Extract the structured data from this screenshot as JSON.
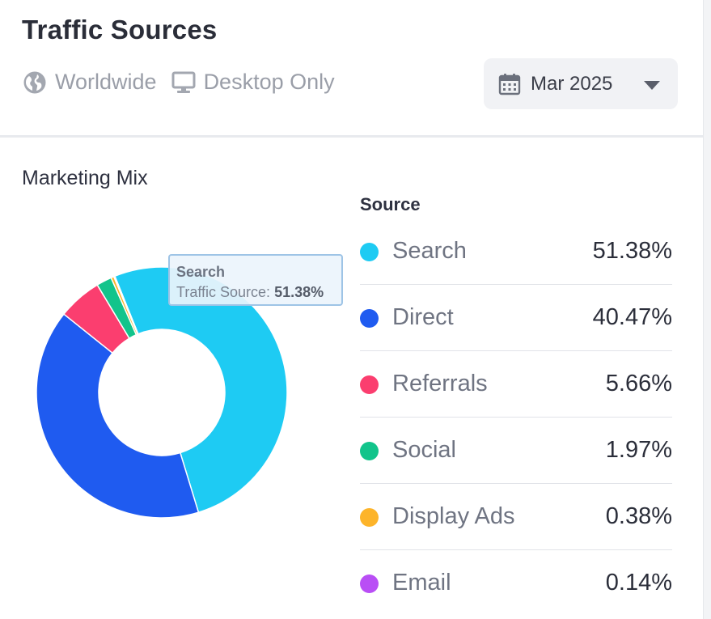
{
  "header": {
    "title": "Traffic Sources",
    "region": "Worldwide",
    "device": "Desktop Only",
    "date": "Mar 2025"
  },
  "section_title": "Marketing Mix",
  "legend": {
    "header": "Source"
  },
  "tooltip": {
    "name": "Search",
    "label": "Traffic Source:",
    "value": "51.38%"
  },
  "chart_data": {
    "type": "pie",
    "title": "Marketing Mix",
    "donut": true,
    "categories": [
      "Search",
      "Direct",
      "Referrals",
      "Social",
      "Display Ads",
      "Email"
    ],
    "values": [
      51.38,
      40.47,
      5.66,
      1.97,
      0.38,
      0.14
    ],
    "labels": [
      "51.38%",
      "40.47%",
      "5.66%",
      "1.97%",
      "0.38%",
      "0.14%"
    ],
    "colors": [
      "#1ecbf3",
      "#1f5bf0",
      "#fb3e6f",
      "#12c48b",
      "#fdb42a",
      "#b94ef5"
    ],
    "unit": "%"
  }
}
